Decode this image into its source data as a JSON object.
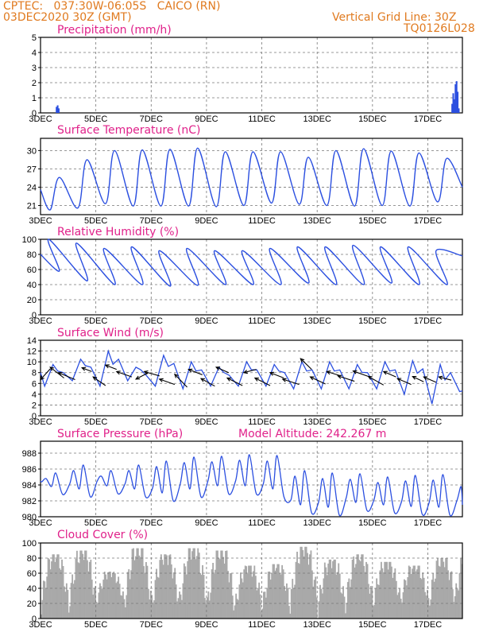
{
  "header": {
    "line1": "CPTEC:   037:30W-06:05S   CAICO (RN)",
    "line2": "03DEC2020 30Z (GMT)",
    "grid_label": "Vertical Grid Line: 30Z",
    "code": "TQ0126L028"
  },
  "colors": {
    "header": "#e07a1f",
    "panel_title": "#e0218a",
    "series": "#2b4fe0",
    "cloud": "#a9a9a9",
    "wind_arrow": "#000000",
    "grid": "#777777"
  },
  "chart_data": [
    {
      "id": "precip",
      "type": "bar",
      "title": "Precipitation (mm/h)",
      "ylim": [
        0,
        5
      ],
      "yticks": [
        0,
        1,
        2,
        3,
        4,
        5
      ],
      "xtick_labels": [
        "3DEC",
        "5DEC",
        "7DEC",
        "9DEC",
        "11DEC",
        "13DEC",
        "15DEC",
        "17DEC"
      ],
      "x_range_days": [
        3,
        18.25
      ],
      "series": [
        {
          "x": [
            3.58,
            3.62,
            3.66
          ],
          "values": [
            0.4,
            0.5,
            0.3
          ]
        },
        {
          "x": [
            17.88,
            17.92,
            17.96,
            18.0,
            18.04,
            18.08,
            18.12
          ],
          "values": [
            0.6,
            1.3,
            0.9,
            1.9,
            2.1,
            1.4,
            0.3
          ]
        }
      ]
    },
    {
      "id": "temp",
      "type": "line",
      "title": "Surface Temperature (nC)",
      "ylim": [
        19.5,
        32
      ],
      "yticks": [
        21,
        24,
        27,
        30
      ],
      "xtick_labels": [
        "3DEC",
        "5DEC",
        "7DEC",
        "9DEC",
        "11DEC",
        "13DEC",
        "15DEC",
        "17DEC"
      ],
      "daily_max": [
        25.6,
        28.5,
        30.0,
        30.1,
        30.2,
        30.4,
        29.8,
        29.8,
        29.8,
        28.9,
        30.0,
        30.3,
        29.9,
        29.6,
        28.7,
        27.4
      ],
      "daily_min": [
        20.3,
        20.6,
        21.3,
        20.9,
        20.9,
        20.9,
        20.8,
        21.0,
        21.4,
        21.2,
        21.0,
        20.9,
        21.0,
        20.9,
        21.6,
        23.0
      ]
    },
    {
      "id": "rh",
      "type": "line",
      "title": "Relative Humidity (%)",
      "ylim": [
        0,
        100
      ],
      "yticks": [
        0,
        20,
        40,
        60,
        80,
        100
      ],
      "xtick_labels": [
        "3DEC",
        "5DEC",
        "7DEC",
        "9DEC",
        "11DEC",
        "13DEC",
        "15DEC",
        "17DEC"
      ],
      "daily_max": [
        100,
        95,
        88,
        90,
        85,
        88,
        85,
        85,
        88,
        90,
        90,
        92,
        90,
        90,
        85,
        78
      ],
      "daily_min": [
        58,
        45,
        40,
        40,
        38,
        39,
        40,
        40,
        40,
        42,
        40,
        40,
        42,
        40,
        40,
        60
      ]
    },
    {
      "id": "wind",
      "type": "line",
      "title": "Surface Wind (m/s)",
      "ylim": [
        0,
        14
      ],
      "yticks": [
        0,
        2,
        4,
        6,
        8,
        10,
        12,
        14
      ],
      "xtick_labels": [
        "3DEC",
        "5DEC",
        "7DEC",
        "9DEC",
        "11DEC",
        "13DEC",
        "15DEC",
        "17DEC"
      ],
      "daily_max": [
        9.5,
        10.5,
        12.0,
        9.0,
        11.2,
        10.0,
        9.0,
        10.0,
        9.5,
        10.0,
        10.0,
        9.5,
        10.0,
        10.2,
        9.5,
        7.0
      ],
      "daily_min": [
        5.5,
        6.5,
        5.5,
        6.5,
        5.5,
        5.0,
        5.5,
        5.5,
        5.5,
        5.0,
        5.0,
        5.0,
        5.0,
        4.0,
        2.2,
        4.5
      ],
      "vectors": [
        {
          "x": 3.35,
          "y": 8.7,
          "dx": -0.35,
          "dy": -2.0
        },
        {
          "x": 3.85,
          "y": 7.0,
          "dx": -0.5,
          "dy": 2.0
        },
        {
          "x": 4.25,
          "y": 6.7,
          "dx": -0.6,
          "dy": 1.3
        },
        {
          "x": 4.85,
          "y": 8.2,
          "dx": -0.35,
          "dy": 0.7
        },
        {
          "x": 5.35,
          "y": 5.6,
          "dx": -0.45,
          "dy": 1.6
        },
        {
          "x": 5.75,
          "y": 8.6,
          "dx": -0.4,
          "dy": 0.8
        },
        {
          "x": 6.3,
          "y": 7.2,
          "dx": -0.55,
          "dy": 1.0
        },
        {
          "x": 6.9,
          "y": 8.0,
          "dx": -0.45,
          "dy": -1.2
        },
        {
          "x": 7.3,
          "y": 7.4,
          "dx": -0.55,
          "dy": 0.8
        },
        {
          "x": 7.85,
          "y": 5.8,
          "dx": -0.55,
          "dy": 1.0
        },
        {
          "x": 8.3,
          "y": 5.3,
          "dx": -0.45,
          "dy": 2.4
        },
        {
          "x": 8.85,
          "y": 7.6,
          "dx": -0.5,
          "dy": 1.0
        },
        {
          "x": 9.3,
          "y": 5.5,
          "dx": -0.5,
          "dy": 1.4
        },
        {
          "x": 9.8,
          "y": 8.0,
          "dx": -0.45,
          "dy": 1.0
        },
        {
          "x": 10.3,
          "y": 5.6,
          "dx": -0.55,
          "dy": 1.4
        },
        {
          "x": 10.8,
          "y": 8.6,
          "dx": -0.45,
          "dy": -0.6
        },
        {
          "x": 11.3,
          "y": 5.6,
          "dx": -0.55,
          "dy": 1.4
        },
        {
          "x": 11.8,
          "y": 7.0,
          "dx": -0.5,
          "dy": 1.0
        },
        {
          "x": 12.35,
          "y": 5.8,
          "dx": -0.6,
          "dy": 1.0
        },
        {
          "x": 12.8,
          "y": 8.6,
          "dx": -0.4,
          "dy": 2.0
        },
        {
          "x": 13.3,
          "y": 5.9,
          "dx": -0.55,
          "dy": 1.3
        },
        {
          "x": 13.85,
          "y": 7.4,
          "dx": -0.5,
          "dy": 0.8
        },
        {
          "x": 14.35,
          "y": 6.4,
          "dx": -0.6,
          "dy": 1.0
        },
        {
          "x": 14.85,
          "y": 7.3,
          "dx": -0.55,
          "dy": 1.0
        },
        {
          "x": 15.4,
          "y": 5.7,
          "dx": -0.55,
          "dy": 1.6
        },
        {
          "x": 15.85,
          "y": 7.2,
          "dx": -0.45,
          "dy": 1.0
        },
        {
          "x": 16.4,
          "y": 5.8,
          "dx": -0.5,
          "dy": 1.1
        },
        {
          "x": 16.85,
          "y": 6.3,
          "dx": -0.4,
          "dy": 1.0
        },
        {
          "x": 17.3,
          "y": 6.2,
          "dx": -0.45,
          "dy": 1.0
        },
        {
          "x": 17.85,
          "y": 6.6,
          "dx": -0.45,
          "dy": 0.6
        }
      ]
    },
    {
      "id": "pressure",
      "type": "line",
      "title": "Surface Pressure (hPa)",
      "annotation": "Model Altitude: 242.267 m",
      "ylim": [
        980,
        989.5
      ],
      "yticks": [
        980,
        982,
        984,
        986,
        988
      ],
      "xtick_labels": [
        "3DEC",
        "5DEC",
        "7DEC",
        "9DEC",
        "11DEC",
        "13DEC",
        "15DEC",
        "17DEC"
      ],
      "semi_diurnal_max": [
        985.5,
        986.5,
        985.8,
        986.5,
        987.0,
        987.5,
        987.6,
        987.8,
        987.7,
        985.8,
        985.5,
        985.4,
        985.0,
        985.2,
        985.3,
        984.5
      ],
      "semi_diurnal_min": [
        982.8,
        982.5,
        982.9,
        982.5,
        982.0,
        982.5,
        982.9,
        982.9,
        982.5,
        980.5,
        980.2,
        980.8,
        980.5,
        980.3,
        980.2,
        980.4
      ]
    },
    {
      "id": "cloud",
      "type": "area",
      "title": "Cloud Cover (%)",
      "ylim": [
        0,
        100
      ],
      "yticks": [
        0,
        20,
        40,
        60,
        80,
        100
      ],
      "xtick_labels": [
        "3DEC",
        "5DEC",
        "7DEC",
        "9DEC",
        "11DEC",
        "13DEC",
        "15DEC",
        "17DEC"
      ],
      "daily_max": [
        85,
        90,
        62,
        93,
        85,
        93,
        90,
        70,
        72,
        95,
        78,
        85,
        75,
        70,
        80,
        97
      ],
      "daily_min": [
        5,
        3,
        15,
        3,
        5,
        5,
        0,
        2,
        5,
        3,
        0,
        5,
        10,
        15,
        5,
        20
      ]
    }
  ]
}
